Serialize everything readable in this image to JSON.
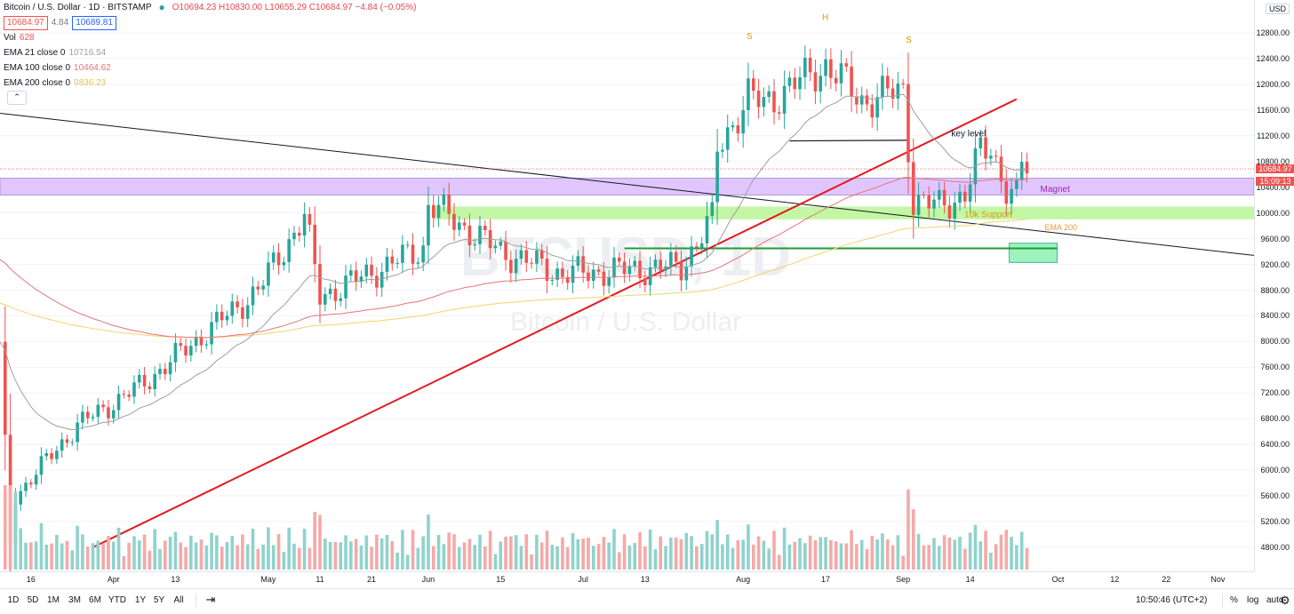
{
  "header": {
    "title": "Bitcoin / U.S. Dollar · 1D · BITSTAMP",
    "ohlc": "O10694.23 H10830.00 L10655.29 C10684.97 −4.84 (−0.05%)",
    "bid": "10684.97",
    "spread": "4.84",
    "ask": "10689.81"
  },
  "indicators": {
    "vol_label": "Vol",
    "vol_value": "628",
    "ema21_label": "EMA 21 close 0",
    "ema21_value": "10716.54",
    "ema21_color": "#9e9e9e",
    "ema100_label": "EMA 100 close 0",
    "ema100_value": "10464.62",
    "ema100_color": "#e5747a",
    "ema200_label": "EMA 200 close 0",
    "ema200_value": "9836.23",
    "ema200_color": "#f7d774",
    "collapse_icon": "chevron-up-icon"
  },
  "watermark": {
    "symbol": "BTCUSD, 1D",
    "name": "Bitcoin / U.S. Dollar"
  },
  "annotations": {
    "s_left": "S",
    "h": "H",
    "s_right": "S",
    "key_level": "key level",
    "magnet": "Magnet",
    "support": "10k Support",
    "ema200": "EMA 200"
  },
  "price_scale": {
    "currency": "USD",
    "ticks": [
      "12800.00",
      "12400.00",
      "12000.00",
      "11600.00",
      "11200.00",
      "10800.00",
      "10400.00",
      "10000.00",
      "9600.00",
      "9200.00",
      "8800.00",
      "8400.00",
      "8000.00",
      "7600.00",
      "7200.00",
      "6800.00",
      "6400.00",
      "6000.00",
      "5600.00",
      "5200.00",
      "4800.00"
    ],
    "last_price": "10684.97",
    "countdown": "15:09:13"
  },
  "time_scale": {
    "labels": [
      "16",
      "Apr",
      "13",
      "May",
      "11",
      "21",
      "Jun",
      "15",
      "Jul",
      "13",
      "Aug",
      "17",
      "Sep",
      "14",
      "Oct",
      "12",
      "22",
      "Nov"
    ]
  },
  "toolbar": {
    "ranges": [
      "1D",
      "5D",
      "1M",
      "3M",
      "6M",
      "YTD",
      "1Y",
      "5Y",
      "All"
    ],
    "goto_icon": "calendar-goto-icon",
    "clock": "10:50:46 (UTC+2)",
    "percent": "%",
    "log": "log",
    "auto": "auto",
    "settings_icon": "gear-icon"
  },
  "colors": {
    "up": "#26a69a",
    "down": "#ef5350",
    "magnet": "#d3a8ff",
    "support": "#a5f07a",
    "trendline_red": "#e3191f",
    "trendline_black": "#131722"
  },
  "chart_data": {
    "type": "candlestick",
    "symbol": "Bitcoin / U.S. Dollar",
    "exchange": "BITSTAMP",
    "interval": "1D",
    "x_range": [
      "2020-03-10",
      "2020-11-08"
    ],
    "y_range": [
      4500,
      12950
    ],
    "key_points": [
      {
        "date": "2020-03-12",
        "close": 4860
      },
      {
        "date": "2020-03-13",
        "close": 5600
      },
      {
        "date": "2020-03-25",
        "close": 6700
      },
      {
        "date": "2020-04-06",
        "close": 7300
      },
      {
        "date": "2020-04-29",
        "close": 8800
      },
      {
        "date": "2020-05-08",
        "close": 9950
      },
      {
        "date": "2020-05-11",
        "close": 8700
      },
      {
        "date": "2020-05-31",
        "close": 9450
      },
      {
        "date": "2020-06-01",
        "close": 10150
      },
      {
        "date": "2020-06-15",
        "close": 9400
      },
      {
        "date": "2020-06-27",
        "close": 9050
      },
      {
        "date": "2020-07-20",
        "close": 9170
      },
      {
        "date": "2020-07-26",
        "close": 9900
      },
      {
        "date": "2020-07-27",
        "close": 11000
      },
      {
        "date": "2020-08-02",
        "close": 11800
      },
      {
        "date": "2020-08-05",
        "close": 11700
      },
      {
        "date": "2020-08-17",
        "close": 12300
      },
      {
        "date": "2020-08-24",
        "close": 11750
      },
      {
        "date": "2020-09-01",
        "close": 11900
      },
      {
        "date": "2020-09-03",
        "close": 10200
      },
      {
        "date": "2020-09-08",
        "close": 10100
      },
      {
        "date": "2020-09-13",
        "close": 10300
      },
      {
        "date": "2020-09-16",
        "close": 10950
      },
      {
        "date": "2020-09-18",
        "close": 11000
      },
      {
        "date": "2020-09-21",
        "close": 10400
      },
      {
        "date": "2020-09-23",
        "close": 10240
      },
      {
        "date": "2020-09-24",
        "close": 10750
      },
      {
        "date": "2020-09-25",
        "close": 10685
      }
    ],
    "ema21_last": 10716.54,
    "ema100_last": 10464.62,
    "ema200_last": 9836.23,
    "levels": [
      {
        "name": "Magnet",
        "from": 10280,
        "to": 10540
      },
      {
        "name": "10k Support",
        "from": 9900,
        "to": 10100
      },
      {
        "name": "key level",
        "price": 11120
      },
      {
        "name": "box",
        "from": 9230,
        "to": 9530
      }
    ]
  }
}
